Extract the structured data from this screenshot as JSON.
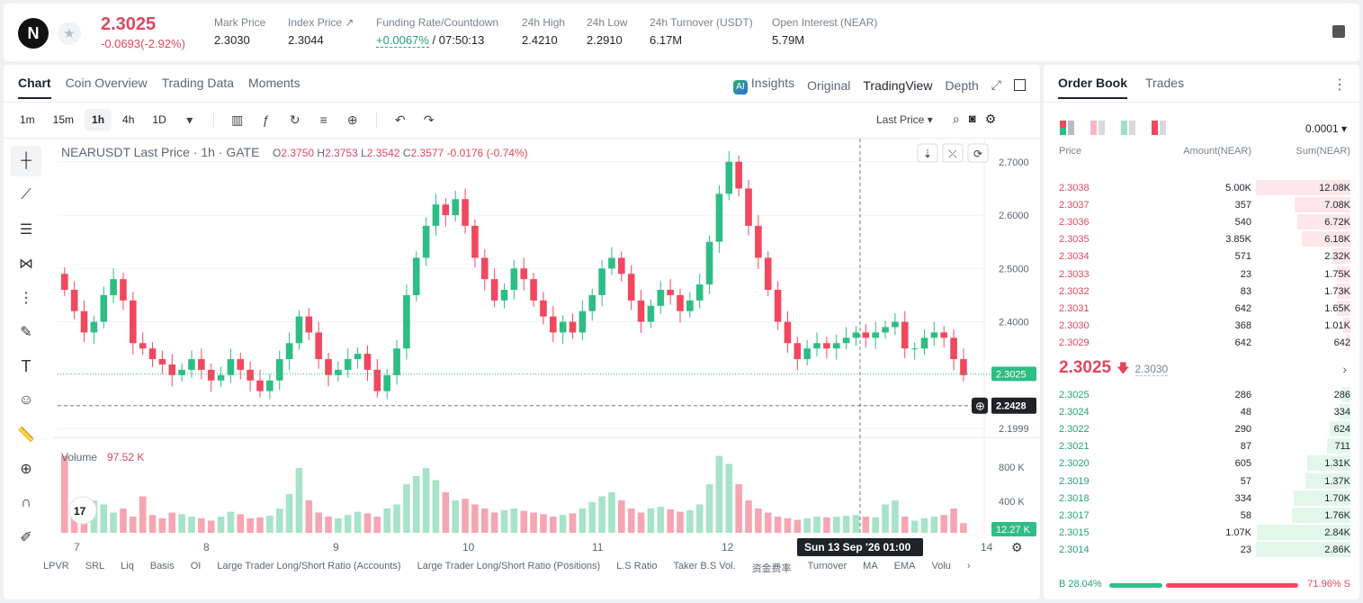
{
  "header": {
    "logo": "N",
    "price": "2.3025",
    "change": "-0.0693(-2.92%)",
    "stats": [
      {
        "label": "Mark Price",
        "value": "2.3030"
      },
      {
        "label": "Index Price ↗",
        "value": "2.3044"
      },
      {
        "label": "Funding Rate/Countdown",
        "value_green": "+0.0067%",
        "value": "/ 07:50:13"
      },
      {
        "label": "24h High",
        "value": "2.4210"
      },
      {
        "label": "24h Low",
        "value": "2.2910"
      },
      {
        "label": "24h Turnover (USDT)",
        "value": "6.17M"
      },
      {
        "label": "Open Interest (NEAR)",
        "value": "5.79M"
      }
    ]
  },
  "chart_tabs": [
    "Chart",
    "Coin Overview",
    "Trading Data",
    "Moments"
  ],
  "views": [
    "Insights",
    "Original",
    "TradingView",
    "Depth"
  ],
  "ai_badge": "AI",
  "timeframes": [
    "1m",
    "15m",
    "1h",
    "4h",
    "1D"
  ],
  "price_type": "Last Price ▾",
  "indicators": [
    "LPVR",
    "SRL",
    "Liq",
    "Basis",
    "OI",
    "Large Trader Long/Short Ratio (Accounts)",
    "Large Trader Long/Short Ratio (Positions)",
    "L.S Ratio",
    "Taker B.S Vol.",
    "资金费率",
    "Turnover",
    "MA",
    "EMA",
    "Volu"
  ],
  "chart_data": {
    "type": "candlestick",
    "title": "NEARUSDT Last Price · 1h · GATE",
    "ohlc_legend": {
      "O": "2.3750",
      "H": "2.3753",
      "L": "2.3542",
      "C": "2.3577",
      "chg": "-0.0176 (-0.74%)"
    },
    "y_ticks": [
      "2.7000",
      "2.6000",
      "2.5000",
      "2.4000",
      "2.1999"
    ],
    "ylim": [
      2.19,
      2.73
    ],
    "last_price_label": "2.3025",
    "crosshair_price": "2.2428",
    "crosshair_time": "Sun 13 Sep '26   01:00",
    "x_ticks": [
      "7",
      "8",
      "9",
      "10",
      "11",
      "12",
      "14"
    ],
    "volume_label": "Volume",
    "volume_value": "97.52 K",
    "volume_ticks": [
      "800 K",
      "400 K"
    ],
    "volume_last": "12.27 K",
    "close_series": [
      2.46,
      2.42,
      2.38,
      2.4,
      2.45,
      2.48,
      2.44,
      2.36,
      2.35,
      2.33,
      2.32,
      2.3,
      2.31,
      2.33,
      2.31,
      2.29,
      2.3,
      2.33,
      2.31,
      2.29,
      2.27,
      2.29,
      2.33,
      2.36,
      2.41,
      2.38,
      2.33,
      2.3,
      2.31,
      2.33,
      2.34,
      2.31,
      2.27,
      2.3,
      2.35,
      2.45,
      2.52,
      2.58,
      2.62,
      2.6,
      2.63,
      2.58,
      2.52,
      2.48,
      2.44,
      2.46,
      2.5,
      2.48,
      2.44,
      2.41,
      2.38,
      2.4,
      2.38,
      2.42,
      2.45,
      2.5,
      2.52,
      2.49,
      2.44,
      2.4,
      2.43,
      2.46,
      2.45,
      2.42,
      2.44,
      2.47,
      2.55,
      2.64,
      2.7,
      2.65,
      2.58,
      2.52,
      2.46,
      2.4,
      2.36,
      2.33,
      2.35,
      2.36,
      2.35,
      2.36,
      2.37,
      2.38,
      2.37,
      2.38,
      2.39,
      2.4,
      2.35,
      2.35,
      2.37,
      2.38,
      2.37,
      2.33,
      2.3
    ],
    "volume_series": [
      950,
      300,
      250,
      400,
      350,
      250,
      300,
      200,
      450,
      220,
      180,
      250,
      230,
      200,
      180,
      150,
      200,
      260,
      230,
      180,
      190,
      210,
      300,
      480,
      800,
      400,
      250,
      200,
      180,
      220,
      260,
      240,
      200,
      300,
      350,
      600,
      700,
      800,
      650,
      500,
      400,
      420,
      350,
      300,
      250,
      280,
      300,
      270,
      250,
      230,
      200,
      220,
      240,
      300,
      380,
      450,
      500,
      400,
      300,
      250,
      300,
      320,
      290,
      260,
      280,
      350,
      600,
      950,
      850,
      600,
      400,
      300,
      250,
      200,
      180,
      160,
      180,
      200,
      190,
      200,
      210,
      220,
      200,
      190,
      350,
      400,
      200,
      150,
      180,
      200,
      220,
      300,
      120
    ]
  },
  "order_book": {
    "tabs": [
      "Order Book",
      "Trades"
    ],
    "precision": "0.0001 ▾",
    "columns": [
      "Price",
      "Amount(NEAR)",
      "Sum(NEAR)"
    ],
    "asks": [
      {
        "price": "2.3038",
        "amount": "5.00K",
        "sum": "12.08K",
        "depth": 1.0
      },
      {
        "price": "2.3037",
        "amount": "357",
        "sum": "7.08K",
        "depth": 0.59
      },
      {
        "price": "2.3036",
        "amount": "540",
        "sum": "6.72K",
        "depth": 0.56
      },
      {
        "price": "2.3035",
        "amount": "3.85K",
        "sum": "6.18K",
        "depth": 0.51
      },
      {
        "price": "2.3034",
        "amount": "571",
        "sum": "2.32K",
        "depth": 0.19
      },
      {
        "price": "2.3033",
        "amount": "23",
        "sum": "1.75K",
        "depth": 0.14
      },
      {
        "price": "2.3032",
        "amount": "83",
        "sum": "1.73K",
        "depth": 0.14
      },
      {
        "price": "2.3031",
        "amount": "642",
        "sum": "1.65K",
        "depth": 0.14
      },
      {
        "price": "2.3030",
        "amount": "368",
        "sum": "1.01K",
        "depth": 0.08
      },
      {
        "price": "2.3029",
        "amount": "642",
        "sum": "642",
        "depth": 0.05
      }
    ],
    "mid_price": "2.3025",
    "mid_arrow": "🡇",
    "mid_mark": "2.3030",
    "bids": [
      {
        "price": "2.3025",
        "amount": "286",
        "sum": "286",
        "depth": 0.1
      },
      {
        "price": "2.3024",
        "amount": "48",
        "sum": "334",
        "depth": 0.12
      },
      {
        "price": "2.3022",
        "amount": "290",
        "sum": "624",
        "depth": 0.22
      },
      {
        "price": "2.3021",
        "amount": "87",
        "sum": "711",
        "depth": 0.25
      },
      {
        "price": "2.3020",
        "amount": "605",
        "sum": "1.31K",
        "depth": 0.46
      },
      {
        "price": "2.3019",
        "amount": "57",
        "sum": "1.37K",
        "depth": 0.48
      },
      {
        "price": "2.3018",
        "amount": "334",
        "sum": "1.70K",
        "depth": 0.6
      },
      {
        "price": "2.3017",
        "amount": "58",
        "sum": "1.76K",
        "depth": 0.62
      },
      {
        "price": "2.3015",
        "amount": "1.07K",
        "sum": "2.84K",
        "depth": 0.99
      },
      {
        "price": "2.3014",
        "amount": "23",
        "sum": "2.86K",
        "depth": 1.0
      }
    ],
    "buy_ratio": "B 28.04%",
    "sell_ratio": "71.96% S",
    "buy_pct": 28.04
  }
}
